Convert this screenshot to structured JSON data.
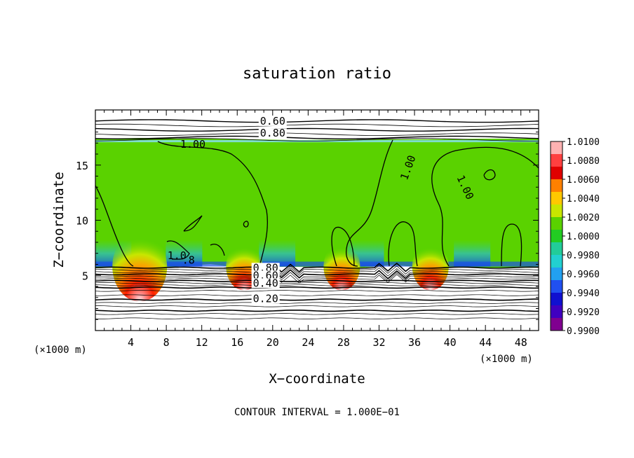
{
  "chart_data": {
    "type": "heatmap",
    "title": "saturation ratio",
    "xlabel": "X−coordinate",
    "ylabel": "Z−coordinate",
    "x_unit_left": "(×1000 m)",
    "x_unit_right": "(×1000 m)",
    "footer": "CONTOUR INTERVAL = 1.000E−01",
    "xlim": [
      0,
      50
    ],
    "ylim": [
      0,
      20
    ],
    "x_ticks": [
      4,
      8,
      12,
      16,
      20,
      24,
      28,
      32,
      36,
      40,
      44,
      48
    ],
    "x_tick_labels": [
      "4",
      "8",
      "12",
      "16",
      "20",
      "24",
      "28",
      "32",
      "36",
      "40",
      "44",
      "48"
    ],
    "y_ticks": [
      5,
      10,
      15
    ],
    "y_tick_labels": [
      "5",
      "10",
      "15"
    ],
    "colorbar": {
      "levels": [
        "1.0100",
        "1.0080",
        "1.0060",
        "1.0040",
        "1.0020",
        "1.0000",
        "0.9980",
        "0.9960",
        "0.9940",
        "0.9920",
        "0.9900"
      ],
      "colors": [
        "#ffb2b2",
        "#ff4040",
        "#e00000",
        "#ff8000",
        "#ffc800",
        "#c8e600",
        "#5ad200",
        "#22cc22",
        "#22cc99",
        "#22d0d0",
        "#22a0f0",
        "#2050f0",
        "#1010d0",
        "#4000c0",
        "#800090"
      ]
    },
    "contour_labels": [
      {
        "text": "0.60",
        "x": 20,
        "z": 18.8
      },
      {
        "text": "0.80",
        "x": 20,
        "z": 17.7
      },
      {
        "text": "1.00",
        "x": 11,
        "z": 16.7
      },
      {
        "text": "1.00",
        "x": 35.5,
        "z": 14.7
      },
      {
        "text": "1.00",
        "x": 41.5,
        "z": 12.9
      },
      {
        "text": "0.80",
        "x": 19.2,
        "z": 5.5
      },
      {
        "text": "0.60",
        "x": 19.2,
        "z": 4.8
      },
      {
        "text": "0.40",
        "x": 19.2,
        "z": 4.1
      },
      {
        "text": "0.20",
        "x": 19.2,
        "z": 2.7
      },
      {
        "text": "1.0",
        "x": 9.2,
        "z": 6.6
      },
      {
        "text": ".8",
        "x": 10.5,
        "z": 6.2
      }
    ],
    "field_description": {
      "top_saturated_boundary_z": 17.2,
      "bottom_saturated_boundary_z": 5.8,
      "hotspot_x": [
        5.0,
        16.8,
        27.8,
        37.8
      ],
      "blue_bands_x": [
        2.0,
        10.0,
        20.5,
        30.5,
        42.5
      ]
    }
  }
}
